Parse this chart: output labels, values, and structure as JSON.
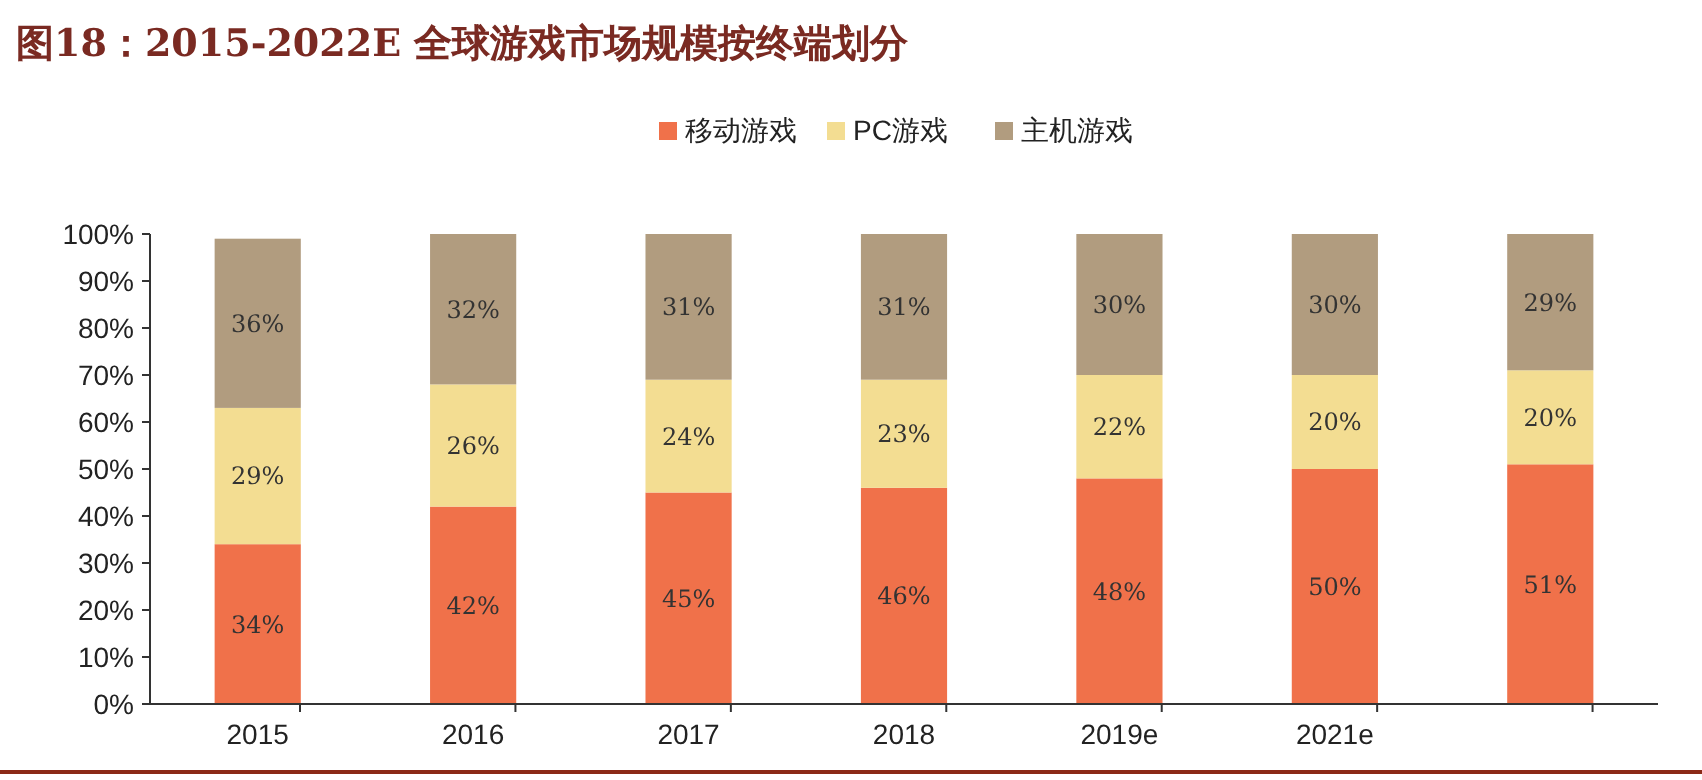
{
  "chart_data": {
    "type": "bar",
    "stacked": true,
    "title": "图18：2015-2022E 全球游戏市场规模按终端划分",
    "categories": [
      "2015",
      "2016",
      "2017",
      "2018",
      "2019e",
      "2021e",
      null
    ],
    "series": [
      {
        "name": "移动游戏",
        "color": "#f0714a",
        "values": [
          34,
          42,
          45,
          46,
          48,
          50,
          51
        ],
        "value_labels": [
          "34%",
          "42%",
          "45%",
          "46%",
          "48%",
          "50%",
          "51%"
        ]
      },
      {
        "name": "PC游戏",
        "color": "#f3dd92",
        "values": [
          29,
          26,
          24,
          23,
          22,
          20,
          20
        ],
        "value_labels": [
          "29%",
          "26%",
          "24%",
          "23%",
          "22%",
          "20%",
          "20%"
        ]
      },
      {
        "name": "主机游戏",
        "color": "#b19c7f",
        "values": [
          36,
          32,
          31,
          31,
          30,
          30,
          29
        ],
        "value_labels": [
          "36%",
          "32%",
          "31%",
          "31%",
          "30%",
          "30%",
          "29%"
        ]
      }
    ],
    "ylim": [
      0,
      100
    ],
    "yticks": [
      {
        "value": 0,
        "label": "0%"
      },
      {
        "value": 10,
        "label": "10%"
      },
      {
        "value": 20,
        "label": "20%"
      },
      {
        "value": 30,
        "label": "30%"
      },
      {
        "value": 40,
        "label": "40%"
      },
      {
        "value": 50,
        "label": "50%"
      },
      {
        "value": 60,
        "label": "60%"
      },
      {
        "value": 70,
        "label": "70%"
      },
      {
        "value": 80,
        "label": "80%"
      },
      {
        "value": 90,
        "label": "90%"
      },
      {
        "value": 100,
        "label": "100%"
      }
    ],
    "legend": "top",
    "grid": false
  }
}
